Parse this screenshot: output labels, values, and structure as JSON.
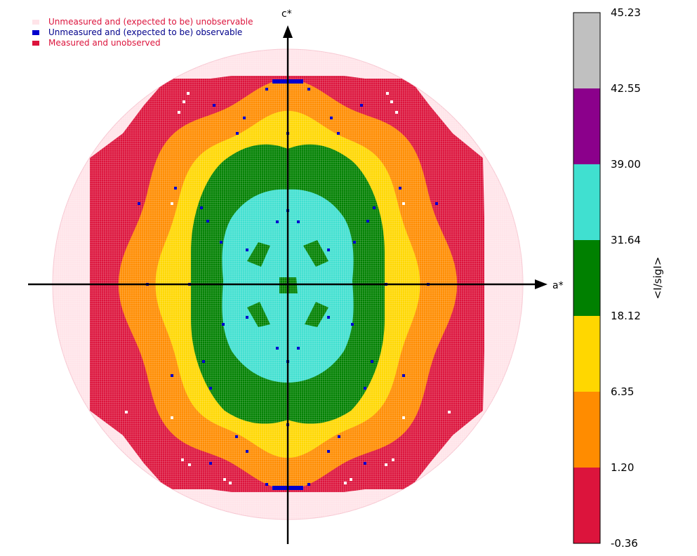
{
  "chart_data": {
    "type": "heatmap",
    "title": "",
    "xlabel": "a*",
    "ylabel": "c*",
    "colorbar_label": "<I/sigI>",
    "colorbar_ticks": [
      "45.23",
      "42.55",
      "39.00",
      "31.64",
      "18.12",
      "6.35",
      "1.20",
      "-0.36"
    ],
    "colorbar_bins": [
      {
        "range": [
          -0.36,
          1.2
        ],
        "color": "#dc143c"
      },
      {
        "range": [
          1.2,
          6.35
        ],
        "color": "#ff8c00"
      },
      {
        "range": [
          6.35,
          18.12
        ],
        "color": "#ffd700"
      },
      {
        "range": [
          18.12,
          31.64
        ],
        "color": "#008000"
      },
      {
        "range": [
          31.64,
          39.0
        ],
        "color": "#40e0d0"
      },
      {
        "range": [
          39.0,
          42.55
        ],
        "color": "#8b008b"
      },
      {
        "range": [
          42.55,
          45.23
        ],
        "color": "#c0c0c0"
      }
    ],
    "legend": [
      {
        "label": "Unmeasured and (expected to be) unobservable",
        "color": "#ffe4e9",
        "text_color": "#dc143c"
      },
      {
        "label": "Unmeasured and (expected to be) observable",
        "color": "#0000cd",
        "text_color": "#00008b"
      },
      {
        "label": "Measured and unobserved",
        "color": "#dc143c",
        "text_color": "#dc143c"
      }
    ],
    "legend_position": "top-left",
    "zones": [
      {
        "name": "unobservable-disk",
        "color": "#ffe4e9",
        "value_bin": "unmeasured"
      },
      {
        "name": "outer-ring",
        "color": "#dc143c",
        "value_bin": [
          -0.36,
          1.2
        ]
      },
      {
        "name": "orange-ring",
        "color": "#ff8c00",
        "value_bin": [
          1.2,
          6.35
        ]
      },
      {
        "name": "yellow-ring",
        "color": "#ffd700",
        "value_bin": [
          6.35,
          18.12
        ]
      },
      {
        "name": "green-ring",
        "color": "#008000",
        "value_bin": [
          18.12,
          31.64
        ]
      },
      {
        "name": "turquoise-core",
        "color": "#40e0d0",
        "value_bin": [
          31.64,
          39.0
        ]
      }
    ]
  }
}
